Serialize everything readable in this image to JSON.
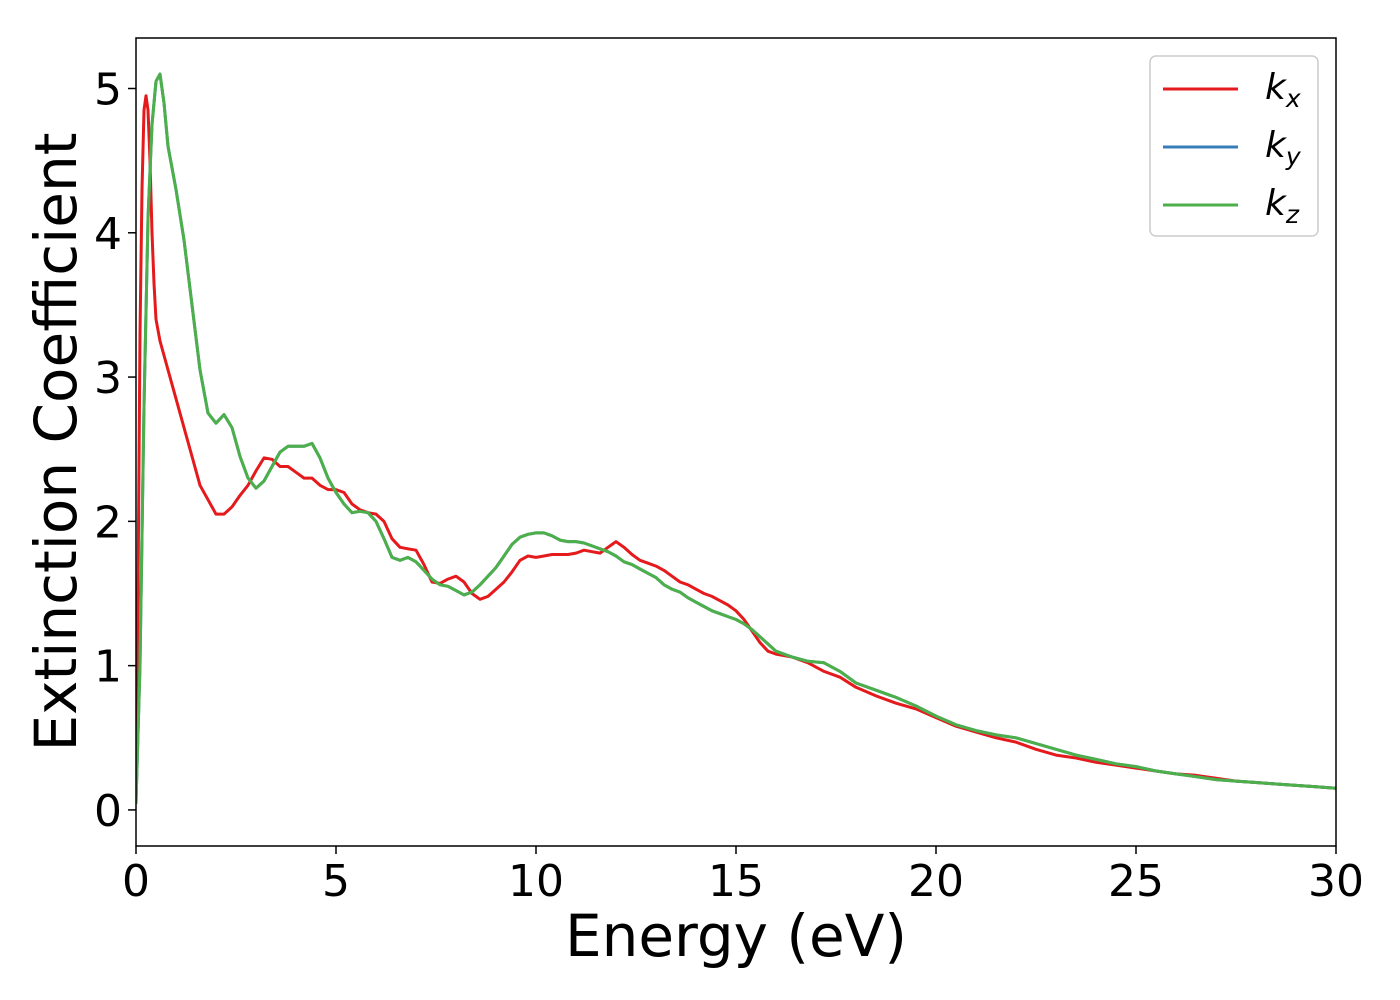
{
  "chart_data": {
    "type": "line",
    "title": "",
    "xlabel": "Energy (eV)",
    "ylabel": "Extinction Coefficient",
    "xlim": [
      0,
      30
    ],
    "ylim": [
      -0.25,
      5.35
    ],
    "xticks": [
      0,
      5,
      10,
      15,
      20,
      25,
      30
    ],
    "yticks": [
      0,
      1,
      2,
      3,
      4,
      5
    ],
    "grid": false,
    "legend": "top-right",
    "series": [
      {
        "name": "k",
        "sub": "x",
        "color": "#e41a1c",
        "x": [
          0,
          0.05,
          0.1,
          0.15,
          0.2,
          0.25,
          0.3,
          0.35,
          0.4,
          0.45,
          0.5,
          0.6,
          0.7,
          0.8,
          1.0,
          1.2,
          1.4,
          1.6,
          1.8,
          2.0,
          2.2,
          2.4,
          2.6,
          2.8,
          3.0,
          3.2,
          3.4,
          3.6,
          3.8,
          4.0,
          4.2,
          4.4,
          4.6,
          4.8,
          5.0,
          5.2,
          5.4,
          5.6,
          5.8,
          6.0,
          6.2,
          6.4,
          6.6,
          6.8,
          7.0,
          7.2,
          7.4,
          7.6,
          7.8,
          8.0,
          8.2,
          8.4,
          8.6,
          8.8,
          9.0,
          9.2,
          9.4,
          9.6,
          9.8,
          10.0,
          10.2,
          10.4,
          10.6,
          10.8,
          11.0,
          11.2,
          11.4,
          11.6,
          11.8,
          12.0,
          12.2,
          12.4,
          12.6,
          12.8,
          13.0,
          13.2,
          13.4,
          13.6,
          13.8,
          14.0,
          14.2,
          14.4,
          14.6,
          14.8,
          15.0,
          15.2,
          15.4,
          15.6,
          15.8,
          16.0,
          16.4,
          16.8,
          17.2,
          17.6,
          18.0,
          18.5,
          19.0,
          19.5,
          20.0,
          20.5,
          21.0,
          21.5,
          22.0,
          22.5,
          23.0,
          23.5,
          24.0,
          24.5,
          25.0,
          25.5,
          26.0,
          26.5,
          27.0,
          27.5,
          28.0,
          28.5,
          29.0,
          29.5,
          30.0
        ],
        "y": [
          0.05,
          1.5,
          3.3,
          4.3,
          4.85,
          4.95,
          4.85,
          4.5,
          4.0,
          3.65,
          3.4,
          3.25,
          3.15,
          3.05,
          2.85,
          2.65,
          2.45,
          2.25,
          2.15,
          2.05,
          2.05,
          2.1,
          2.18,
          2.25,
          2.35,
          2.44,
          2.43,
          2.38,
          2.38,
          2.34,
          2.3,
          2.3,
          2.25,
          2.22,
          2.22,
          2.2,
          2.12,
          2.08,
          2.06,
          2.05,
          2.0,
          1.88,
          1.82,
          1.81,
          1.8,
          1.7,
          1.58,
          1.57,
          1.6,
          1.62,
          1.58,
          1.5,
          1.46,
          1.48,
          1.53,
          1.58,
          1.65,
          1.73,
          1.76,
          1.75,
          1.76,
          1.77,
          1.77,
          1.77,
          1.78,
          1.8,
          1.79,
          1.78,
          1.82,
          1.86,
          1.82,
          1.77,
          1.73,
          1.71,
          1.69,
          1.66,
          1.62,
          1.58,
          1.56,
          1.53,
          1.5,
          1.48,
          1.45,
          1.42,
          1.38,
          1.32,
          1.24,
          1.16,
          1.1,
          1.08,
          1.06,
          1.02,
          0.96,
          0.92,
          0.85,
          0.79,
          0.74,
          0.7,
          0.64,
          0.58,
          0.54,
          0.5,
          0.47,
          0.42,
          0.38,
          0.36,
          0.33,
          0.31,
          0.29,
          0.27,
          0.25,
          0.24,
          0.22,
          0.2,
          0.19,
          0.18,
          0.17,
          0.16,
          0.15
        ]
      },
      {
        "name": "k",
        "sub": "y",
        "color": "#377eb8",
        "x": [
          0,
          0.1,
          0.2,
          0.3,
          0.4,
          0.5,
          0.6,
          0.7,
          0.8,
          1.0,
          1.2,
          1.4,
          1.6,
          1.8,
          2.0,
          2.2,
          2.4,
          2.6,
          2.8,
          3.0,
          3.2,
          3.4,
          3.6,
          3.8,
          4.0,
          4.2,
          4.4,
          4.6,
          4.8,
          5.0,
          5.2,
          5.4,
          5.6,
          5.8,
          6.0,
          6.2,
          6.4,
          6.6,
          6.8,
          7.0,
          7.2,
          7.4,
          7.6,
          7.8,
          8.0,
          8.2,
          8.4,
          8.6,
          8.8,
          9.0,
          9.2,
          9.4,
          9.6,
          9.8,
          10.0,
          10.2,
          10.4,
          10.6,
          10.8,
          11.0,
          11.2,
          11.4,
          11.6,
          11.8,
          12.0,
          12.2,
          12.4,
          12.6,
          12.8,
          13.0,
          13.2,
          13.4,
          13.6,
          13.8,
          14.0,
          14.2,
          14.4,
          14.6,
          14.8,
          15.0,
          15.2,
          15.4,
          15.6,
          15.8,
          16.0,
          16.4,
          16.8,
          17.2,
          17.6,
          18.0,
          18.5,
          19.0,
          19.5,
          20.0,
          20.5,
          21.0,
          21.5,
          22.0,
          22.5,
          23.0,
          23.5,
          24.0,
          24.5,
          25.0,
          25.5,
          26.0,
          26.5,
          27.0,
          27.5,
          28.0,
          28.5,
          29.0,
          29.5,
          30.0
        ],
        "y": [
          0.05,
          1.0,
          2.8,
          4.1,
          4.75,
          5.05,
          5.1,
          4.9,
          4.6,
          4.3,
          3.95,
          3.5,
          3.05,
          2.75,
          2.68,
          2.74,
          2.65,
          2.45,
          2.3,
          2.23,
          2.28,
          2.38,
          2.48,
          2.52,
          2.52,
          2.52,
          2.54,
          2.44,
          2.3,
          2.2,
          2.12,
          2.06,
          2.07,
          2.06,
          2.0,
          1.88,
          1.75,
          1.73,
          1.75,
          1.72,
          1.66,
          1.6,
          1.56,
          1.55,
          1.52,
          1.49,
          1.51,
          1.56,
          1.62,
          1.68,
          1.76,
          1.84,
          1.89,
          1.91,
          1.92,
          1.92,
          1.9,
          1.87,
          1.86,
          1.86,
          1.85,
          1.83,
          1.81,
          1.79,
          1.76,
          1.72,
          1.7,
          1.67,
          1.64,
          1.61,
          1.56,
          1.53,
          1.51,
          1.47,
          1.44,
          1.41,
          1.38,
          1.36,
          1.34,
          1.32,
          1.29,
          1.25,
          1.2,
          1.15,
          1.1,
          1.06,
          1.03,
          1.02,
          0.96,
          0.88,
          0.83,
          0.78,
          0.72,
          0.65,
          0.59,
          0.55,
          0.52,
          0.5,
          0.46,
          0.42,
          0.38,
          0.35,
          0.32,
          0.3,
          0.27,
          0.25,
          0.23,
          0.21,
          0.2,
          0.19,
          0.18,
          0.17,
          0.16,
          0.15
        ]
      },
      {
        "name": "k",
        "sub": "z",
        "color": "#4daf4a",
        "x": [
          0,
          0.1,
          0.2,
          0.3,
          0.4,
          0.5,
          0.6,
          0.7,
          0.8,
          1.0,
          1.2,
          1.4,
          1.6,
          1.8,
          2.0,
          2.2,
          2.4,
          2.6,
          2.8,
          3.0,
          3.2,
          3.4,
          3.6,
          3.8,
          4.0,
          4.2,
          4.4,
          4.6,
          4.8,
          5.0,
          5.2,
          5.4,
          5.6,
          5.8,
          6.0,
          6.2,
          6.4,
          6.6,
          6.8,
          7.0,
          7.2,
          7.4,
          7.6,
          7.8,
          8.0,
          8.2,
          8.4,
          8.6,
          8.8,
          9.0,
          9.2,
          9.4,
          9.6,
          9.8,
          10.0,
          10.2,
          10.4,
          10.6,
          10.8,
          11.0,
          11.2,
          11.4,
          11.6,
          11.8,
          12.0,
          12.2,
          12.4,
          12.6,
          12.8,
          13.0,
          13.2,
          13.4,
          13.6,
          13.8,
          14.0,
          14.2,
          14.4,
          14.6,
          14.8,
          15.0,
          15.2,
          15.4,
          15.6,
          15.8,
          16.0,
          16.4,
          16.8,
          17.2,
          17.6,
          18.0,
          18.5,
          19.0,
          19.5,
          20.0,
          20.5,
          21.0,
          21.5,
          22.0,
          22.5,
          23.0,
          23.5,
          24.0,
          24.5,
          25.0,
          25.5,
          26.0,
          26.5,
          27.0,
          27.5,
          28.0,
          28.5,
          29.0,
          29.5,
          30.0
        ],
        "y": [
          0.05,
          1.0,
          2.8,
          4.1,
          4.75,
          5.05,
          5.1,
          4.9,
          4.6,
          4.3,
          3.95,
          3.5,
          3.05,
          2.75,
          2.68,
          2.74,
          2.65,
          2.45,
          2.3,
          2.23,
          2.28,
          2.38,
          2.48,
          2.52,
          2.52,
          2.52,
          2.54,
          2.44,
          2.3,
          2.2,
          2.12,
          2.06,
          2.07,
          2.06,
          2.0,
          1.88,
          1.75,
          1.73,
          1.75,
          1.72,
          1.66,
          1.6,
          1.56,
          1.55,
          1.52,
          1.49,
          1.51,
          1.56,
          1.62,
          1.68,
          1.76,
          1.84,
          1.89,
          1.91,
          1.92,
          1.92,
          1.9,
          1.87,
          1.86,
          1.86,
          1.85,
          1.83,
          1.81,
          1.79,
          1.76,
          1.72,
          1.7,
          1.67,
          1.64,
          1.61,
          1.56,
          1.53,
          1.51,
          1.47,
          1.44,
          1.41,
          1.38,
          1.36,
          1.34,
          1.32,
          1.29,
          1.25,
          1.2,
          1.15,
          1.1,
          1.06,
          1.03,
          1.02,
          0.96,
          0.88,
          0.83,
          0.78,
          0.72,
          0.65,
          0.59,
          0.55,
          0.52,
          0.5,
          0.46,
          0.42,
          0.38,
          0.35,
          0.32,
          0.3,
          0.27,
          0.25,
          0.23,
          0.21,
          0.2,
          0.19,
          0.18,
          0.17,
          0.16,
          0.15
        ]
      }
    ]
  }
}
